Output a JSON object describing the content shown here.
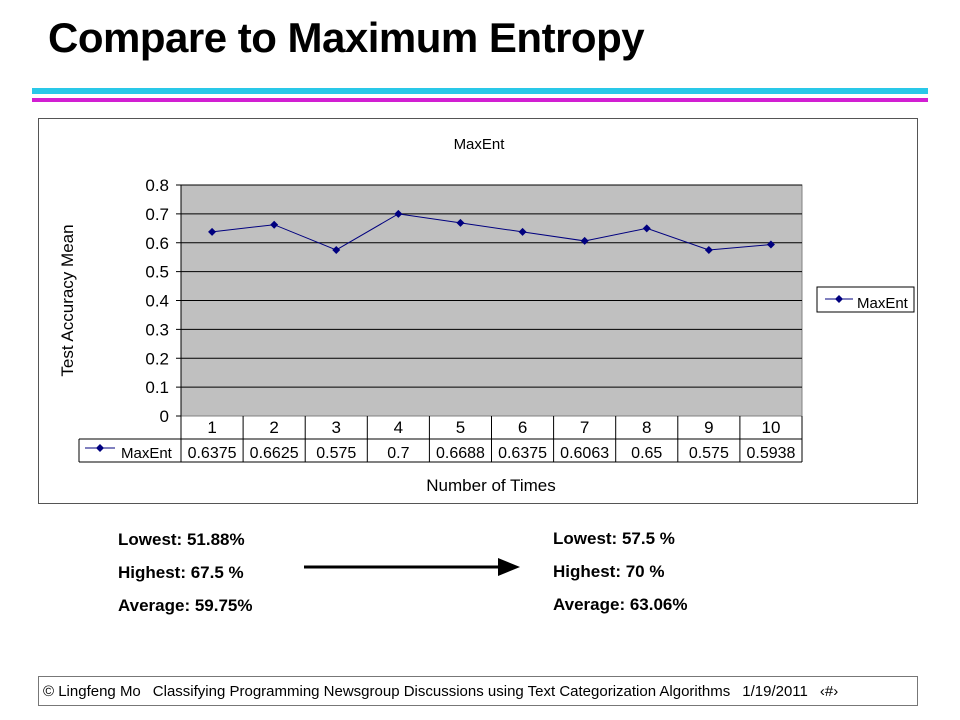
{
  "slide": {
    "title": "Compare to Maximum Entropy",
    "colors": {
      "rule_cyan": "#29c8e8",
      "rule_magenta": "#d21ed2",
      "series": "#00007f",
      "plot_bg": "#c0c0c0"
    }
  },
  "chart_data": {
    "type": "line",
    "title": "MaxEnt",
    "xlabel": "Number of Times",
    "ylabel": "Test Accuracy Mean",
    "categories": [
      "1",
      "2",
      "3",
      "4",
      "5",
      "6",
      "7",
      "8",
      "9",
      "10"
    ],
    "series": [
      {
        "name": "MaxEnt",
        "values": [
          0.6375,
          0.6625,
          0.575,
          0.7,
          0.6688,
          0.6375,
          0.6063,
          0.65,
          0.575,
          0.5938
        ],
        "table_labels": [
          "0.6375",
          "0.6625",
          "0.575",
          "0.7",
          "0.6688",
          "0.6375",
          "0.6063",
          "0.65",
          "0.575",
          "0.5938"
        ]
      }
    ],
    "yticks": [
      "0",
      "0.1",
      "0.2",
      "0.3",
      "0.4",
      "0.5",
      "0.6",
      "0.7",
      "0.8"
    ],
    "ylim": [
      0,
      0.8
    ],
    "grid": true,
    "legend": "right",
    "data_table": true
  },
  "stats": {
    "left": {
      "lowest": "Lowest: 51.88%",
      "highest": "Highest: 67.5 %",
      "average": "Average: 59.75%"
    },
    "right": {
      "lowest": "Lowest: 57.5 %",
      "highest": "Highest: 70 %",
      "average": "Average: 63.06%"
    }
  },
  "footer": {
    "copyright": "© Lingfeng Mo",
    "title": "Classifying Programming Newsgroup Discussions using Text Categorization Algorithms",
    "date": "1/19/2011",
    "page": "‹#›"
  }
}
